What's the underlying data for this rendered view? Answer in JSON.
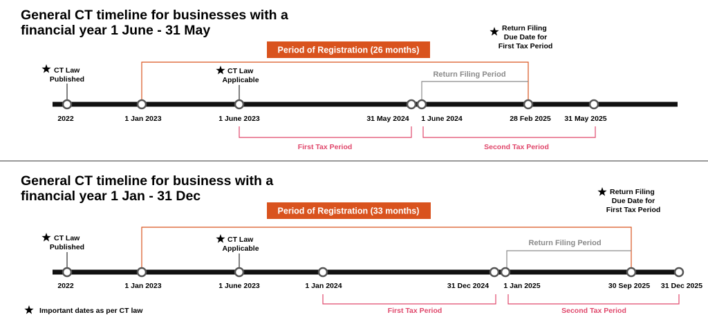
{
  "colors": {
    "axis": "#111111",
    "accent": "#d9531e",
    "period_bracket": "#e0476b",
    "filing_bracket": "#8a8a8a",
    "marker_fill": "#ffffff"
  },
  "panels": [
    {
      "title_line1": "General CT timeline for businesses with a",
      "title_line2": "financial year 1 June - 31 May",
      "banner": "Period of Registration (26 months)",
      "milestones": [
        {
          "date": "2022"
        },
        {
          "date": "1 Jan 2023"
        },
        {
          "date": "1 June 2023"
        },
        {
          "date": "31 May 2024"
        },
        {
          "date": "1 June 2024"
        },
        {
          "date": "28 Feb 2025"
        },
        {
          "date": "31 May 2025"
        }
      ],
      "star_law_published": {
        "line1": "CT Law",
        "line2": "Published"
      },
      "star_law_applicable": {
        "line1": "CT Law",
        "line2": "Applicable"
      },
      "star_due_date": {
        "line1": "Return Filing",
        "line2": "Due Date for",
        "line3": "First Tax Period"
      },
      "return_filing_period": "Return Filing Period",
      "first_tax_period": "First Tax Period",
      "second_tax_period": "Second Tax Period"
    },
    {
      "title_line1": "General CT timeline for business with a",
      "title_line2": "financial year 1 Jan - 31 Dec",
      "banner": "Period of Registration (33 months)",
      "milestones": [
        {
          "date": "2022"
        },
        {
          "date": "1 Jan 2023"
        },
        {
          "date": "1 June 2023"
        },
        {
          "date": "1 Jan 2024"
        },
        {
          "date": "31 Dec 2024"
        },
        {
          "date": "1 Jan 2025"
        },
        {
          "date": "30 Sep 2025"
        },
        {
          "date": "31 Dec 2025"
        }
      ],
      "star_law_published": {
        "line1": "CT Law",
        "line2": "Published"
      },
      "star_law_applicable": {
        "line1": "CT Law",
        "line2": "Applicable"
      },
      "star_due_date": {
        "line1": "Return Filing",
        "line2": "Due Date for",
        "line3": "First Tax Period"
      },
      "return_filing_period": "Return Filing Period",
      "first_tax_period": "First Tax Period",
      "second_tax_period": "Second Tax Period"
    }
  ],
  "legend": {
    "text": "Important dates as per CT law",
    "icon": "star-icon"
  }
}
